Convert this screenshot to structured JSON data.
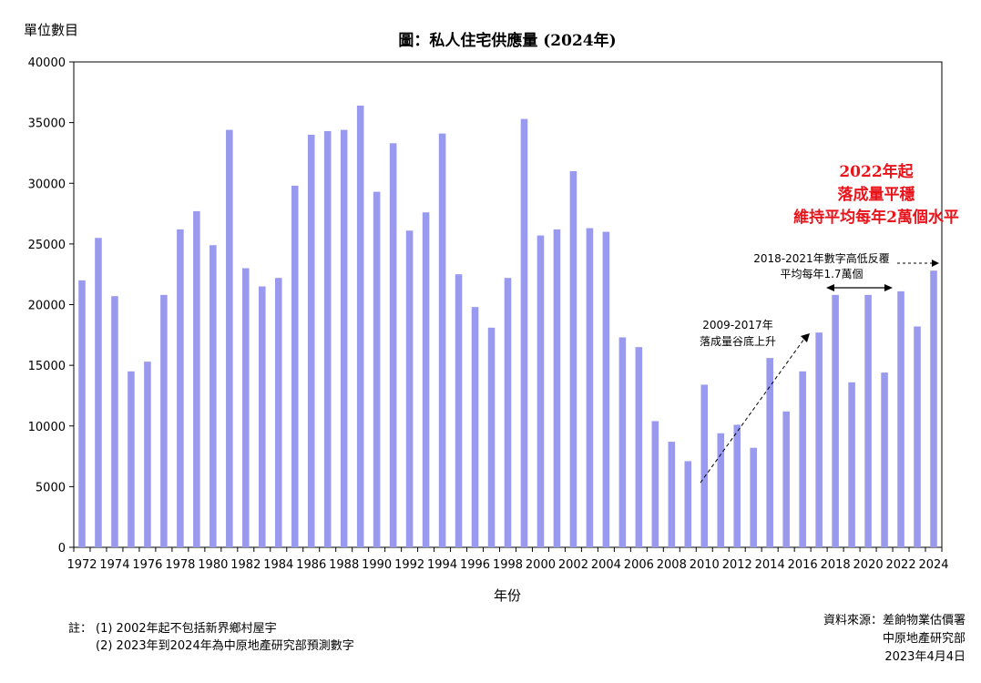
{
  "chart_data": {
    "type": "bar",
    "title": "圖：私人住宅供應量 (2024年)",
    "ylabel": "單位數目",
    "xlabel": "年份",
    "ylim": [
      0,
      40000
    ],
    "yticks": [
      0,
      5000,
      10000,
      15000,
      20000,
      25000,
      30000,
      35000,
      40000
    ],
    "grid": false,
    "legend": "none",
    "categories": [
      "1972",
      "1973",
      "1974",
      "1975",
      "1976",
      "1977",
      "1978",
      "1979",
      "1980",
      "1981",
      "1982",
      "1983",
      "1984",
      "1985",
      "1986",
      "1987",
      "1988",
      "1989",
      "1990",
      "1991",
      "1992",
      "1993",
      "1994",
      "1995",
      "1996",
      "1997",
      "1998",
      "1999",
      "2000",
      "2001",
      "2002",
      "2003",
      "2004",
      "2005",
      "2006",
      "2007",
      "2008",
      "2009",
      "2010",
      "2011",
      "2012",
      "2013",
      "2014",
      "2015",
      "2016",
      "2017",
      "2018",
      "2019",
      "2020",
      "2021",
      "2022",
      "2023",
      "2024"
    ],
    "x_tick_labels": [
      "1972",
      "1974",
      "1976",
      "1978",
      "1980",
      "1982",
      "1984",
      "1986",
      "1988",
      "1990",
      "1992",
      "1994",
      "1996",
      "1998",
      "2000",
      "2002",
      "2004",
      "2006",
      "2008",
      "2010",
      "2012",
      "2014",
      "2016",
      "2018",
      "2020",
      "2022",
      "2024"
    ],
    "values": [
      22000,
      25500,
      20700,
      14500,
      15300,
      20800,
      26200,
      27700,
      24900,
      34400,
      23000,
      21500,
      22200,
      29800,
      34000,
      34300,
      34400,
      36400,
      29300,
      33300,
      26100,
      27600,
      34100,
      22500,
      19800,
      18100,
      22200,
      35300,
      25700,
      26200,
      31000,
      26300,
      26000,
      17300,
      16500,
      10400,
      8700,
      7100,
      13400,
      9400,
      10100,
      8200,
      15600,
      11200,
      14500,
      17700,
      20800,
      13600,
      20800,
      14400,
      21100,
      18200,
      22800
    ],
    "bar_color": "#9999ee",
    "annotations": {
      "trend_2009_2017": {
        "line1": "2009-2017年",
        "line2": "落成量谷底上升"
      },
      "range_2018_2021": {
        "line1": "2018-2021年數字高低反覆",
        "line2": "平均每年1.7萬個"
      },
      "highlight": {
        "line1": "2022年起",
        "line2": "落成量平穩",
        "line3": "維持平均每年2萬個水平",
        "color": "#e8141b"
      }
    }
  },
  "footnotes": {
    "prefix": "註：",
    "note1": "(1) 2002年起不包括新界鄉村屋宇",
    "note2": "(2)  2023年到2024年為中原地產研究部預測數字"
  },
  "source": {
    "line1": "資料來源：差餉物業估價署",
    "line2": "中原地產研究部",
    "line3": "2023年4月4日"
  }
}
